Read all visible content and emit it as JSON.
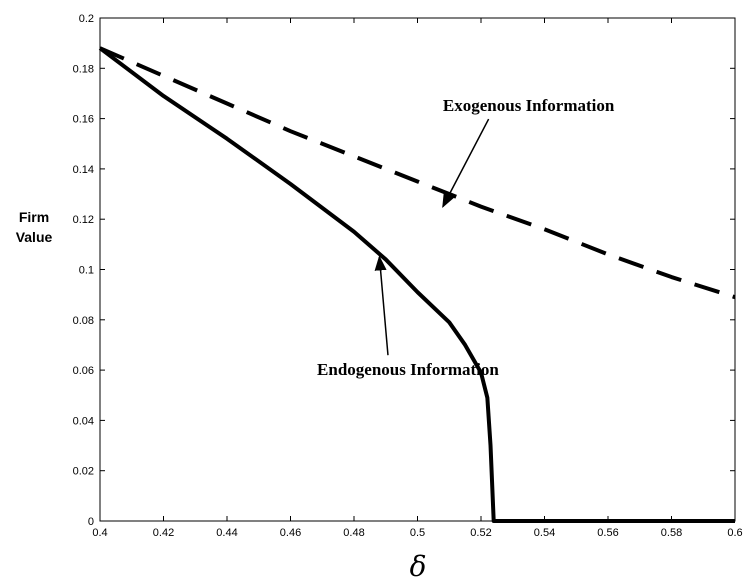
{
  "chart_data": {
    "type": "line",
    "title": "",
    "xlabel": "δ",
    "ylabel": [
      "Firm",
      "Value"
    ],
    "xlim": [
      0.4,
      0.6
    ],
    "ylim": [
      0,
      0.2
    ],
    "grid": false,
    "legend": "none",
    "x_ticks": [
      "0.4",
      "0.42",
      "0.44",
      "0.46",
      "0.48",
      "0.5",
      "0.52",
      "0.54",
      "0.56",
      "0.58",
      "0.6"
    ],
    "y_ticks": [
      "0",
      "0.02",
      "0.04",
      "0.06",
      "0.08",
      "0.1",
      "0.12",
      "0.14",
      "0.16",
      "0.18",
      "0.2"
    ],
    "series": [
      {
        "style": "dashed",
        "color": "#000000",
        "x": [
          0.4,
          0.42,
          0.44,
          0.46,
          0.48,
          0.5,
          0.52,
          0.54,
          0.56,
          0.58,
          0.6
        ],
        "y": [
          0.188,
          0.177,
          0.166,
          0.155,
          0.145,
          0.135,
          0.125,
          0.116,
          0.106,
          0.097,
          0.089
        ]
      },
      {
        "style": "solid",
        "color": "#000000",
        "x": [
          0.4,
          0.42,
          0.44,
          0.46,
          0.48,
          0.49,
          0.5,
          0.51,
          0.515,
          0.52,
          0.522,
          0.523,
          0.524,
          0.54,
          0.56,
          0.58,
          0.6
        ],
        "y": [
          0.188,
          0.169,
          0.152,
          0.134,
          0.115,
          0.104,
          0.091,
          0.079,
          0.07,
          0.059,
          0.049,
          0.03,
          0.0,
          0.0,
          0.0,
          0.0,
          0.0
        ]
      }
    ],
    "annotations": [
      {
        "text": "Exogenous Information",
        "arrow_to": [
          0.508,
          0.125
        ],
        "text_at": [
          0.535,
          0.163
        ]
      },
      {
        "text": "Endogenous Information",
        "arrow_to": [
          0.488,
          0.105
        ],
        "text_at": [
          0.497,
          0.058
        ]
      }
    ]
  }
}
